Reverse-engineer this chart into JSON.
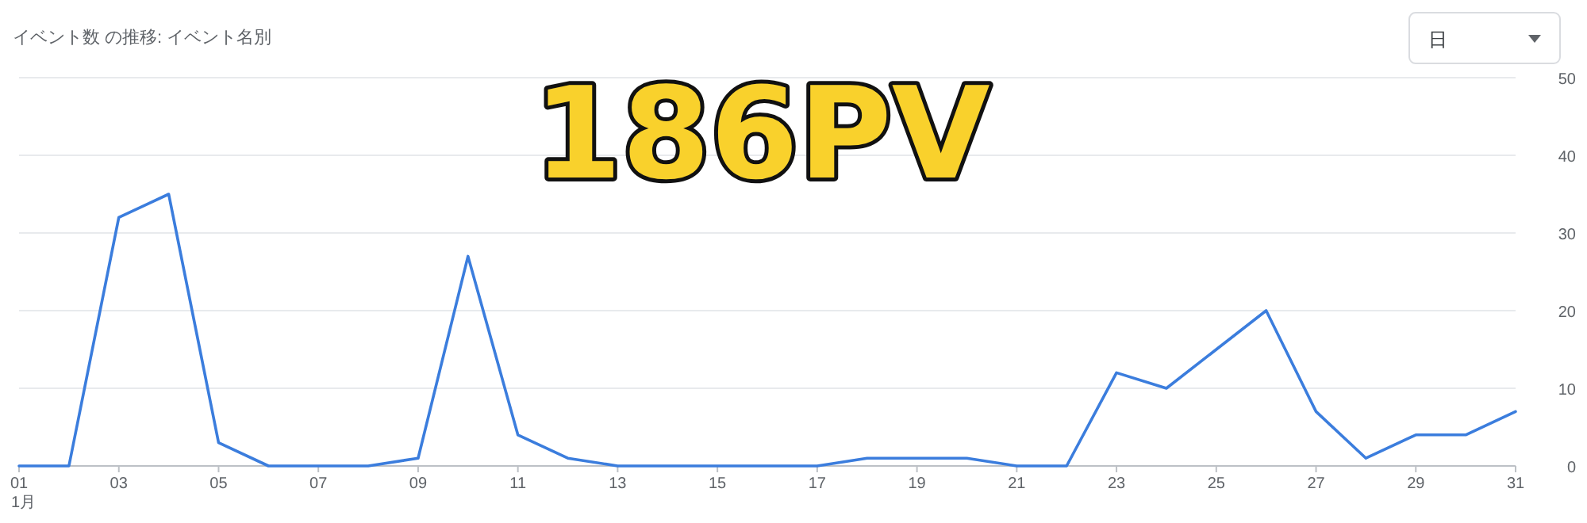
{
  "chart_data": {
    "type": "line",
    "title": "イベント数 の推移: イベント名別",
    "x": [
      1,
      2,
      3,
      4,
      5,
      6,
      7,
      8,
      9,
      10,
      11,
      12,
      13,
      14,
      15,
      16,
      17,
      18,
      19,
      20,
      21,
      22,
      23,
      24,
      25,
      26,
      27,
      28,
      29,
      30,
      31
    ],
    "series": [
      {
        "color": "#3b7ddd",
        "values": [
          0,
          0,
          32,
          35,
          3,
          0,
          0,
          0,
          1,
          27,
          4,
          1,
          0,
          0,
          0,
          0,
          0,
          1,
          1,
          1,
          0,
          0,
          12,
          10,
          15,
          20,
          7,
          1,
          4,
          4,
          7
        ]
      }
    ],
    "xlim": [
      1,
      31
    ],
    "xticks": [
      {
        "value": 1,
        "label": "01"
      },
      {
        "value": 3,
        "label": "03"
      },
      {
        "value": 5,
        "label": "05"
      },
      {
        "value": 7,
        "label": "07"
      },
      {
        "value": 9,
        "label": "09"
      },
      {
        "value": 11,
        "label": "11"
      },
      {
        "value": 13,
        "label": "13"
      },
      {
        "value": 15,
        "label": "15"
      },
      {
        "value": 17,
        "label": "17"
      },
      {
        "value": 19,
        "label": "19"
      },
      {
        "value": 21,
        "label": "21"
      },
      {
        "value": 23,
        "label": "23"
      },
      {
        "value": 25,
        "label": "25"
      },
      {
        "value": 27,
        "label": "27"
      },
      {
        "value": 29,
        "label": "29"
      },
      {
        "value": 31,
        "label": "31"
      }
    ],
    "ylim": [
      0,
      50
    ],
    "yticks": [
      0,
      10,
      20,
      30,
      40,
      50
    ],
    "grid": "y",
    "marker": "none",
    "line_style": "solid",
    "annotations": [
      "1月",
      "186PV",
      "日"
    ]
  }
}
